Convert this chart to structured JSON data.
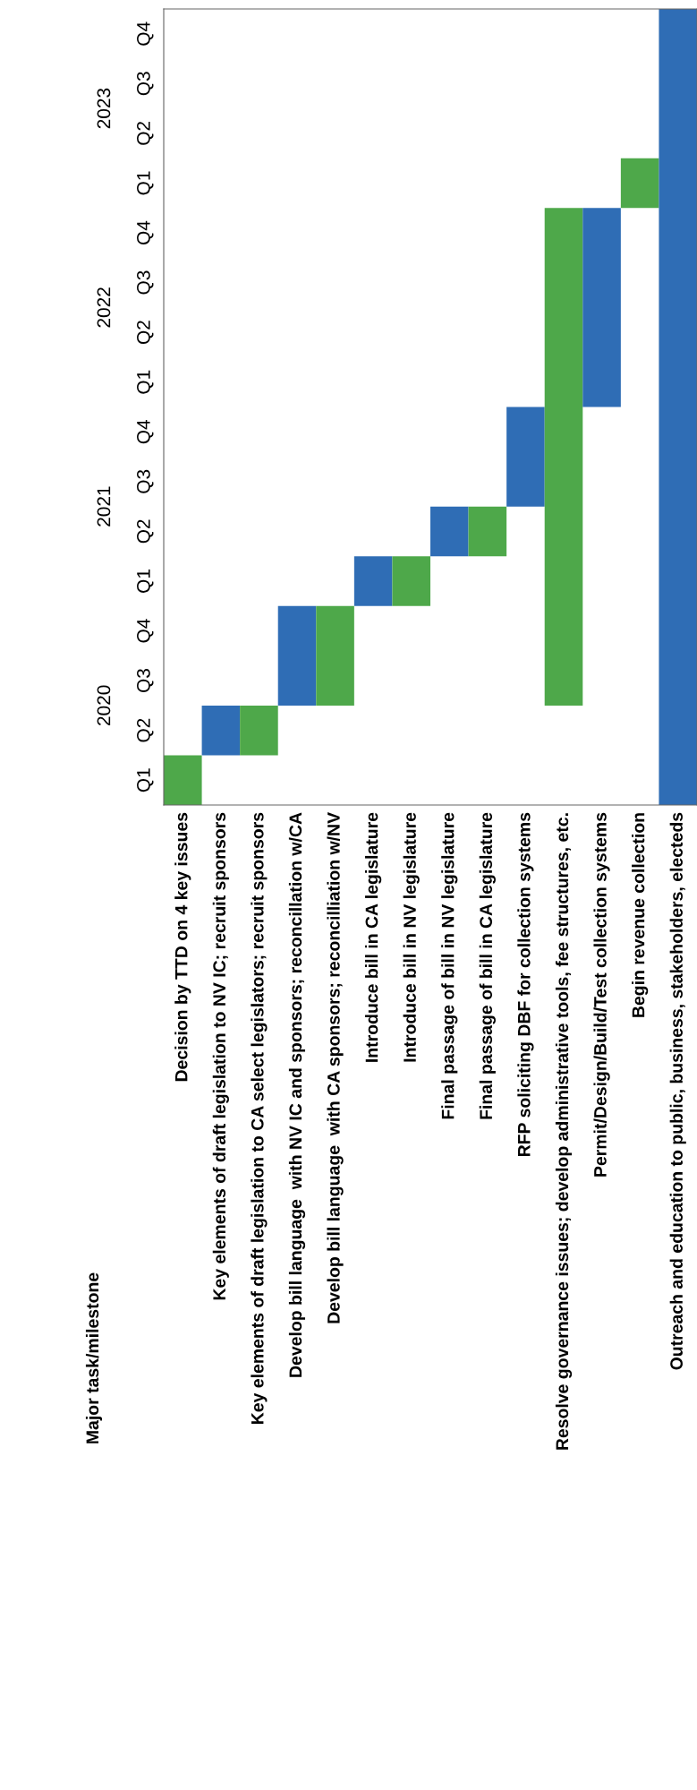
{
  "chart_data": {
    "type": "bar",
    "annotations": [
      "Major task/milestone",
      "Q1",
      "Q2",
      "Q3",
      "Q4",
      "Q1",
      "Q2",
      "Q3",
      "Q4",
      "Q1",
      "Q2",
      "Q3",
      "Q4",
      "Q1",
      "Q2",
      "Q3",
      "Q4"
    ],
    "categories": [
      "Decision by TTD on 4 key issues",
      "Key elements of draft legislation to NV IC; recruit sponsors",
      "Key elements of draft legislation to CA select legislators; recruit sponsors",
      "Develop bill language  with NV IC and sponsors; reconcillation w/CA",
      "Develop bill language  with CA sponsors; reconcilliation w/NV",
      "Introduce bill in CA legislature",
      "Introduce bill in NV legislature",
      "Final passage of bill in NV legislature",
      "Final passage of bill in CA legislature",
      "RFP soliciting DBF for collection systems",
      "Resolve governance issues; develop administrative tools, fee structures, etc.",
      "Permit/Design/Build/Test collection systems",
      "Begin revenue collection",
      "Outreach and education to public, business, stakeholders, electeds"
    ],
    "base": [
      2019.5,
      2019.75,
      2019.75,
      2020.0,
      2020.0,
      2020.5,
      2020.5,
      2020.75,
      2020.75,
      2021.0,
      2020.0,
      2021.5,
      2022.5,
      2019.5
    ],
    "values": [
      0.25,
      0.25,
      0.25,
      0.5,
      0.5,
      0.25,
      0.25,
      0.25,
      0.25,
      0.5,
      2.5,
      1.0,
      0.25,
      4.0
    ],
    "colors": [
      "#4ea84a",
      "#2f6db5",
      "#4ea84a",
      "#2f6db5",
      "#4ea84a",
      "#2f6db5",
      "#4ea84a",
      "#2f6db5",
      "#4ea84a",
      "#2f6db5",
      "#4ea84a",
      "#2f6db5",
      "#4ea84a",
      "#2f6db5"
    ],
    "ylim": [
      2019.5,
      2023.5
    ],
    "yticks": [
      2020,
      2021,
      2022,
      2023
    ]
  }
}
